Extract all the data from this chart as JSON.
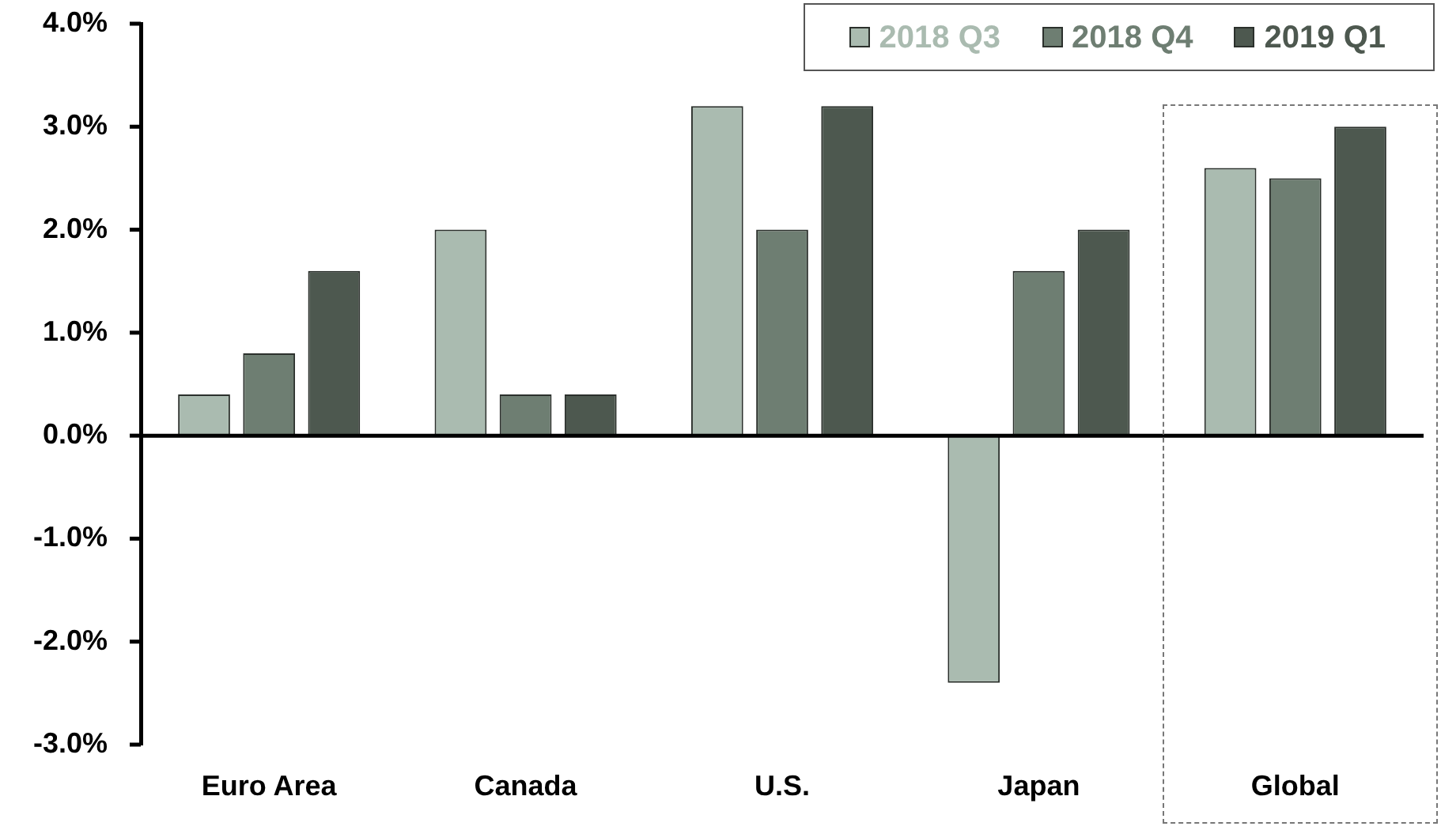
{
  "chart_data": {
    "type": "bar",
    "categories": [
      "Euro Area",
      "Canada",
      "U.S.",
      "Japan",
      "Global"
    ],
    "series": [
      {
        "name": "2018 Q3",
        "color": "#aabbb0",
        "values": [
          0.4,
          2.0,
          3.2,
          -2.4,
          2.6
        ]
      },
      {
        "name": "2018 Q4",
        "color": "#6e7e72",
        "values": [
          0.8,
          0.4,
          2.0,
          1.6,
          2.5
        ]
      },
      {
        "name": "2019 Q1",
        "color": "#4d584f",
        "values": [
          1.6,
          0.4,
          3.2,
          2.0,
          3.0
        ]
      }
    ],
    "ylim": [
      -3,
      4
    ],
    "yticks": [
      {
        "value": -3,
        "label": "-3.0%"
      },
      {
        "value": -2,
        "label": "-2.0%"
      },
      {
        "value": -1,
        "label": "-1.0%"
      },
      {
        "value": 0,
        "label": "0.0%"
      },
      {
        "value": 1,
        "label": "1.0%"
      },
      {
        "value": 2,
        "label": "2.0%"
      },
      {
        "value": 3,
        "label": "3.0%"
      },
      {
        "value": 4,
        "label": "4.0%"
      }
    ],
    "ref_lines": [
      {
        "axis": "y",
        "value": 0,
        "color": "#000000"
      }
    ],
    "grid": false,
    "legend": "top right"
  }
}
